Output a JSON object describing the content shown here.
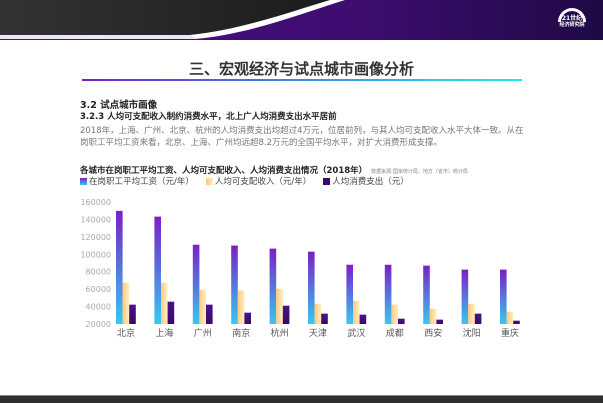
{
  "logo": {
    "line1": "21世纪",
    "line2": "经济研究院"
  },
  "header": {
    "title": "三、宏观经济与试点城市画像分析"
  },
  "section": "3.2 试点城市画像",
  "subsection": "3.2.3 人均可支配收入制约消费水平，北上广人均消费支出水平居前",
  "paragraph": "2018年，上海、广州、北京、杭州的人均消费支出均超过4万元，位居前列，与其人均可支配收入水平大体一致。从在岗职工平均工资来看，北京、上海、广州均远超8.2万元的全国平均水平，对扩大消费形成支撑。",
  "chart_data": {
    "type": "bar",
    "title": "各城市在岗职工平均工资、人均可支配收入、人均消费支出情况（2018年）",
    "source": "数据来源:国家统计局，地方（省市）统计局",
    "categories": [
      "北京",
      "上海",
      "广州",
      "南京",
      "杭州",
      "天津",
      "武汉",
      "成都",
      "西安",
      "沈阳",
      "重庆"
    ],
    "ylim": [
      20000,
      160000
    ],
    "yticks": [
      "20000",
      "40000",
      "60000",
      "80000",
      "100000",
      "120000",
      "140000",
      "160000"
    ],
    "grid": false,
    "legend_position": "top-left",
    "series": [
      {
        "name": "在岗职工平均工资（元/年）",
        "color": "#7a20c8",
        "color2": "#38c8f0",
        "values": [
          149800,
          143200,
          111000,
          110000,
          106500,
          103000,
          88000,
          88000,
          87000,
          82400,
          82400
        ]
      },
      {
        "name": "人均可支配收入（元/年）",
        "color": "#ffc880",
        "color2": "#fff0c0",
        "values": [
          67400,
          67400,
          59400,
          58300,
          60500,
          43300,
          46800,
          42200,
          37600,
          43300,
          34200
        ]
      },
      {
        "name": "人均消费支出（元）",
        "color": "#4a1090",
        "color2": "#3a0a60",
        "values": [
          42200,
          45600,
          42200,
          33000,
          41000,
          31900,
          30700,
          26100,
          25000,
          31900,
          23800
        ]
      }
    ]
  }
}
